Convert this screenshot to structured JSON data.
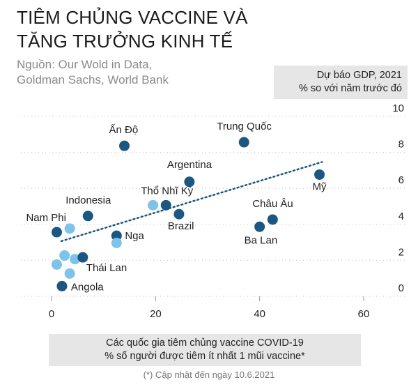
{
  "title_line1": "TIÊM CHỦNG VACCINE VÀ",
  "title_line2": "TĂNG TRƯỞNG KINH TẾ",
  "source_line1": "Nguồn: Our Wold in Data,",
  "source_line2": "Goldman Sachs, World Bank",
  "footnote": "(*) Cập nhật đến ngày 10.6.2021",
  "colors": {
    "dark": "#1c5781",
    "light": "#7ec4ea",
    "grid": "#bdbdbd",
    "trend": "#1c5781"
  },
  "chart_data": {
    "type": "scatter",
    "ylabel_line1": "Dự báo GDP, 2021",
    "ylabel_line2": "% so với năm trước đó",
    "xlabel_line1": "Các quốc gia tiêm chủng vaccine COVID-19",
    "xlabel_line2": "% số người được tiêm ít nhất 1 mũi vaccine*",
    "xlim": [
      0,
      60
    ],
    "ylim": [
      0,
      10
    ],
    "x_ticks": [
      "0",
      "20",
      "40",
      "60"
    ],
    "y_ticks": [
      "0",
      "2",
      "4",
      "6",
      "8",
      "10"
    ],
    "grid": "horizontal dotted",
    "trendline": {
      "from": [
        0,
        2.6
      ],
      "to": [
        52,
        7.0
      ]
    },
    "points": [
      {
        "label": "Ấn Độ",
        "x": 14,
        "y": 7.9,
        "tone": "dark"
      },
      {
        "label": "Trung Quốc",
        "x": 37,
        "y": 8.1,
        "tone": "dark"
      },
      {
        "label": "Argentina",
        "x": 26.5,
        "y": 5.9,
        "tone": "dark"
      },
      {
        "label": "Mỹ",
        "x": 51.5,
        "y": 6.3,
        "tone": "dark"
      },
      {
        "label": "Thổ Nhĩ Kỳ",
        "x": 22,
        "y": 4.6,
        "tone": "dark"
      },
      {
        "label": "",
        "x": 19.5,
        "y": 4.6,
        "tone": "light"
      },
      {
        "label": "Brazil",
        "x": 24.5,
        "y": 4.1,
        "tone": "dark"
      },
      {
        "label": "Châu Âu",
        "x": 42.5,
        "y": 3.8,
        "tone": "dark"
      },
      {
        "label": "Ba Lan",
        "x": 40,
        "y": 3.4,
        "tone": "dark"
      },
      {
        "label": "Indonesia",
        "x": 7,
        "y": 4.0,
        "tone": "dark"
      },
      {
        "label": "Nam Phi",
        "x": 1,
        "y": 3.1,
        "tone": "dark"
      },
      {
        "label": "",
        "x": 3.5,
        "y": 3.3,
        "tone": "light"
      },
      {
        "label": "Nga",
        "x": 12.5,
        "y": 2.9,
        "tone": "dark"
      },
      {
        "label": "",
        "x": 12.5,
        "y": 2.5,
        "tone": "light"
      },
      {
        "label": "",
        "x": 2.5,
        "y": 1.8,
        "tone": "light"
      },
      {
        "label": "",
        "x": 1,
        "y": 1.3,
        "tone": "light"
      },
      {
        "label": "",
        "x": 4.5,
        "y": 1.6,
        "tone": "light"
      },
      {
        "label": "Thái Lan",
        "x": 6,
        "y": 1.7,
        "tone": "dark"
      },
      {
        "label": "",
        "x": 3.5,
        "y": 0.8,
        "tone": "light"
      },
      {
        "label": "Angola",
        "x": 2,
        "y": 0.1,
        "tone": "dark"
      }
    ]
  }
}
